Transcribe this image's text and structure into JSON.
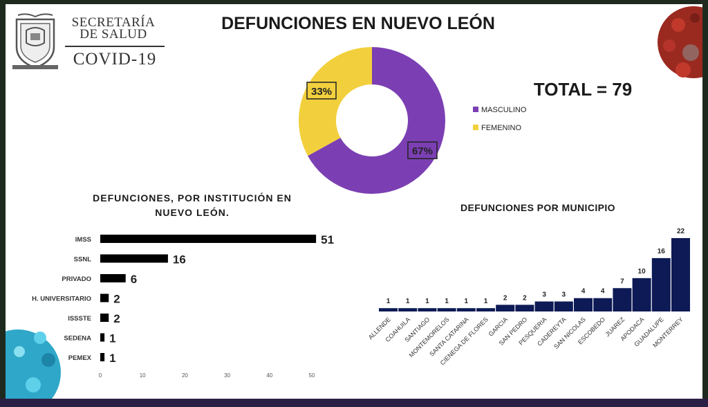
{
  "logo": {
    "org_line1": "SECRETARÍA",
    "org_line2": "DE SALUD",
    "program": "COVID-19"
  },
  "colors": {
    "masculino": "#7b3fb3",
    "femenino": "#f2d03d",
    "institucion_bar": "#d42a22",
    "municipio_bar": "#0d1a55"
  },
  "chart_data": [
    {
      "type": "pie",
      "title": "DEFUNCIONES EN NUEVO LEÓN",
      "donut": true,
      "total_label": "TOTAL = 79",
      "slices": [
        {
          "name": "MASCULINO",
          "value": 67,
          "label": "67%"
        },
        {
          "name": "FEMENINO",
          "value": 33,
          "label": "33%"
        }
      ],
      "legend_position": "right"
    },
    {
      "type": "bar",
      "orientation": "horizontal",
      "title": "DEFUNCIONES, POR INSTITUCIÓN EN NUEVO LEÓN.",
      "categories": [
        "IMSS",
        "SSNL",
        "PRIVADO",
        "H. UNIVERSITARIO",
        "ISSSTE",
        "SEDENA",
        "PEMEX"
      ],
      "values": [
        51,
        16,
        6,
        2,
        2,
        1,
        1
      ],
      "xlim": [
        0,
        50
      ],
      "xticks": [
        0,
        10,
        20,
        30,
        40,
        50
      ],
      "grid": false
    },
    {
      "type": "bar",
      "orientation": "vertical",
      "title": "DEFUNCIONES POR MUNICIPIO",
      "categories": [
        "ALLENDE",
        "COAHUILA",
        "SANTIAGO",
        "MONTEMORELOS",
        "SANTA CATARINA",
        "CIENEGA DE FLORES",
        "GARCIA",
        "SAN PEDRO",
        "PESQUERIA",
        "CADEREYTA",
        "SAN NICOLAS",
        "ESCOBEDO",
        "JUAREZ",
        "APODACA",
        "GUADALUPE",
        "MONTERREY"
      ],
      "values": [
        1,
        1,
        1,
        1,
        1,
        1,
        2,
        2,
        3,
        3,
        4,
        4,
        7,
        10,
        16,
        22
      ],
      "ylim": [
        0,
        22
      ],
      "grid": false
    }
  ]
}
